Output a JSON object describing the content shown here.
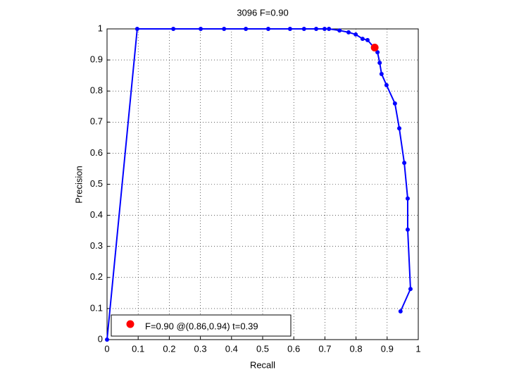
{
  "chart_data": {
    "type": "line",
    "title": "3096 F=0.90",
    "x_label": "Recall",
    "y_label": "Precision",
    "xlim": [
      0,
      1
    ],
    "ylim": [
      0,
      1
    ],
    "xticks": [
      0,
      0.1,
      0.2,
      0.3,
      0.4,
      0.5,
      0.6,
      0.7,
      0.8,
      0.9,
      1
    ],
    "yticks": [
      0,
      0.1,
      0.2,
      0.3,
      0.4,
      0.5,
      0.6,
      0.7,
      0.8,
      0.9,
      1
    ],
    "grid": true,
    "legend": "lower left",
    "series": [
      {
        "color": "#0000ff",
        "x": [
          0,
          0.097,
          0.213,
          0.301,
          0.376,
          0.446,
          0.518,
          0.588,
          0.633,
          0.672,
          0.699,
          0.713,
          0.747,
          0.776,
          0.799,
          0.821,
          0.837,
          0.857,
          0.869,
          0.876,
          0.882,
          0.898,
          0.925,
          0.939,
          0.955,
          0.966,
          0.966,
          0.975,
          0.943
        ],
        "values": [
          0,
          1,
          1,
          1,
          1,
          1,
          1,
          1,
          1,
          1,
          1,
          1,
          0.995,
          0.989,
          0.982,
          0.968,
          0.964,
          0.941,
          0.925,
          0.891,
          0.855,
          0.819,
          0.76,
          0.68,
          0.569,
          0.454,
          0.354,
          0.163,
          0.091
        ]
      },
      {
        "name": "F=0.90 @(0.86,0.94) t=0.39",
        "color": "#ff0000",
        "x": [
          0.86
        ],
        "values": [
          0.94
        ]
      }
    ]
  }
}
